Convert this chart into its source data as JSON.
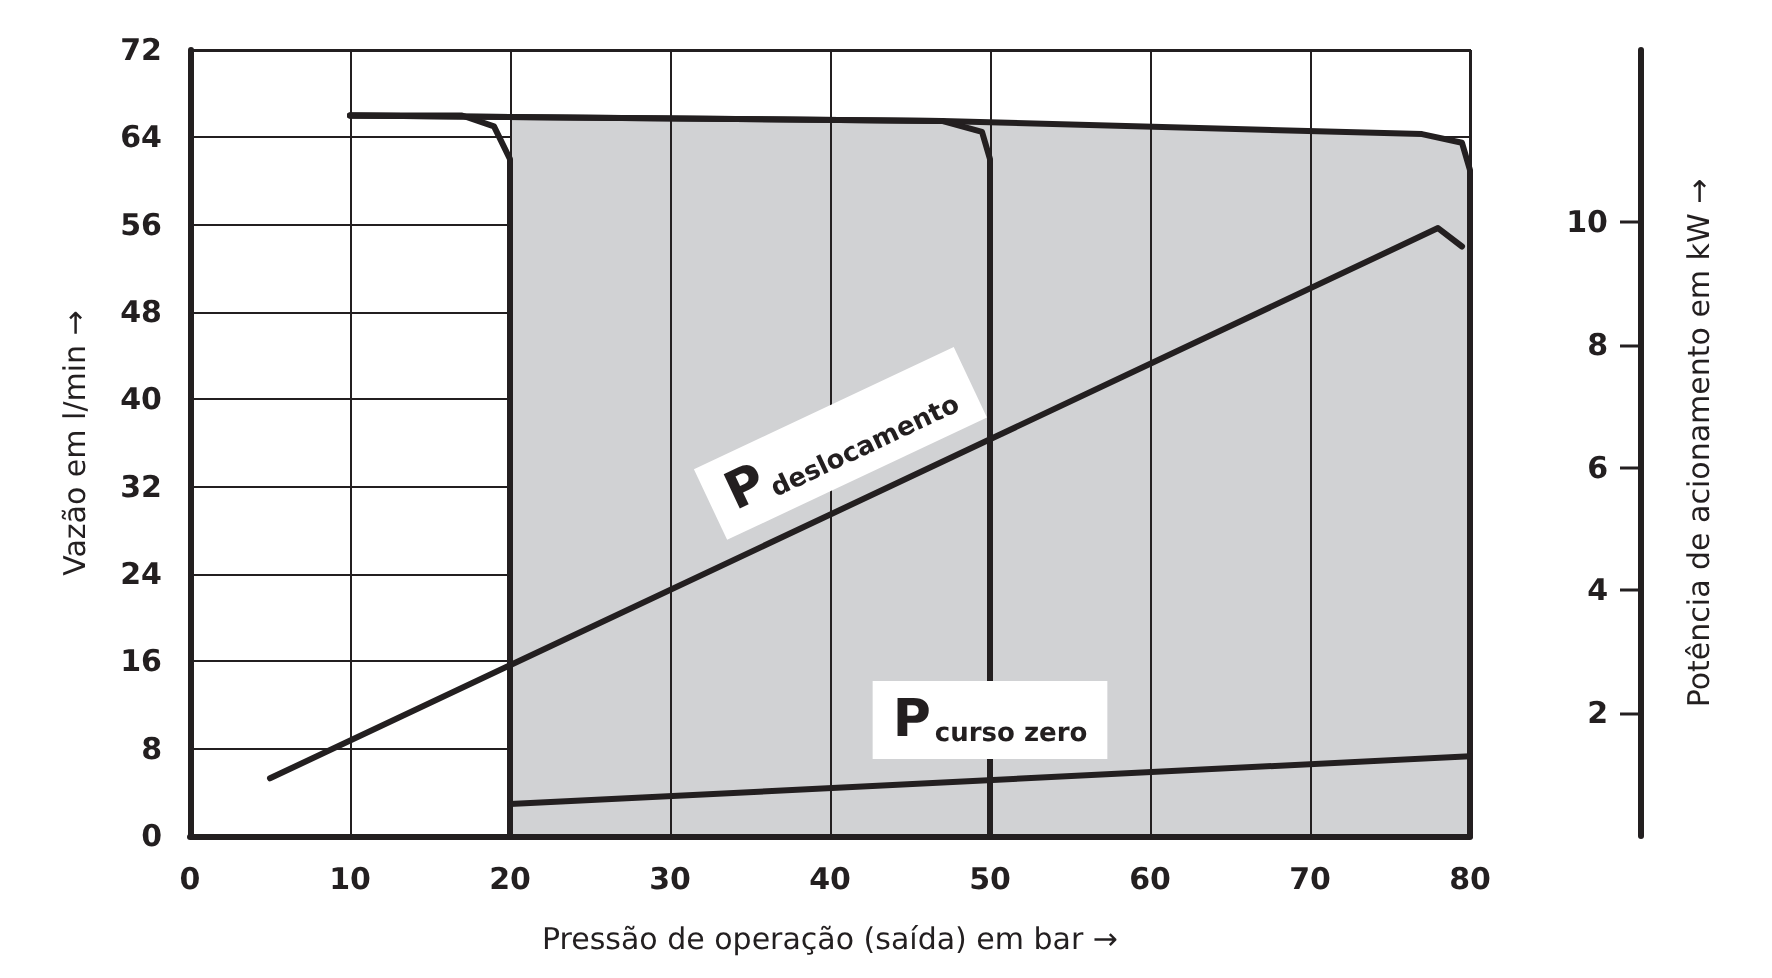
{
  "chart_data": {
    "type": "line",
    "xlabel": "Pressão de operação (saída) em bar →",
    "ylabel": "Vazão em l/min →",
    "y2label": "Potência de acionamento em kW →",
    "xlim": [
      0,
      80
    ],
    "xticks": [
      0,
      10,
      20,
      30,
      40,
      50,
      60,
      70,
      80
    ],
    "ylim": [
      0,
      72
    ],
    "yticks": [
      0,
      8,
      16,
      24,
      32,
      40,
      48,
      56,
      64,
      72
    ],
    "y2lim": [
      0,
      12.8
    ],
    "y2ticks": [
      2,
      4,
      6,
      8,
      10
    ],
    "grid": true,
    "legend": false,
    "marker": "none",
    "line_style": "solid",
    "series": [
      {
        "type": "area",
        "color": "#d1d2d4",
        "x": [
          20,
          47,
          77,
          79.5,
          80
        ],
        "values": [
          65.8,
          65.5,
          64.3,
          63.5,
          61
        ]
      },
      {
        "color": "#231f20",
        "x": [
          10,
          17,
          19,
          20,
          20
        ],
        "values": [
          66,
          66,
          65,
          62,
          0
        ]
      },
      {
        "color": "#231f20",
        "x": [
          10,
          47,
          49.5,
          50,
          50
        ],
        "values": [
          66,
          65.5,
          64.5,
          62,
          0
        ]
      },
      {
        "color": "#231f20",
        "x": [
          10,
          47,
          77,
          79.5,
          80,
          80
        ],
        "values": [
          66,
          65.5,
          64.3,
          63.5,
          61,
          0
        ]
      },
      {
        "name": "P$_{deslocamento}$",
        "axis": "y2",
        "color": "#231f20",
        "x": [
          5,
          20,
          50,
          78,
          79.5
        ],
        "values": [
          0.94,
          2.78,
          6.46,
          9.9,
          9.6
        ]
      },
      {
        "name": "P$_{curso zero}$",
        "axis": "y2",
        "color": "#231f20",
        "x": [
          20,
          80
        ],
        "values": [
          0.52,
          1.3
        ]
      }
    ]
  }
}
